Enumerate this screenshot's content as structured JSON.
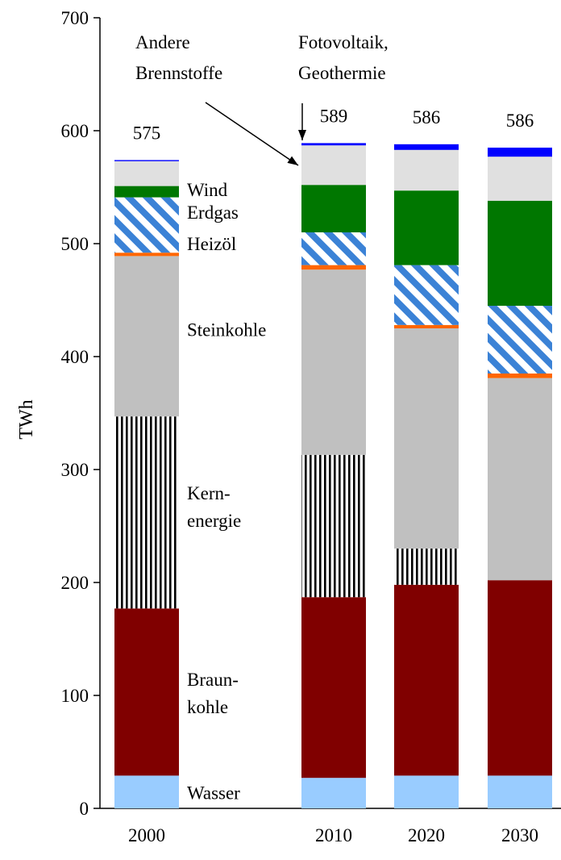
{
  "chart_data": {
    "type": "bar",
    "stacked": true,
    "title": "",
    "xlabel": "",
    "ylabel": "TWh",
    "ylim": [
      0,
      700
    ],
    "yticks": [
      "0",
      "100",
      "200",
      "300",
      "400",
      "500",
      "600",
      "700"
    ],
    "categories": [
      "2000",
      "2010",
      "2020",
      "2030"
    ],
    "totals": [
      "575",
      "589",
      "586",
      "586"
    ],
    "series": [
      {
        "key": "wasser",
        "values": [
          29,
          27,
          29,
          29
        ],
        "color": "#99ccff",
        "pattern": "solid"
      },
      {
        "key": "braunkohle",
        "values": [
          148,
          160,
          169,
          173
        ],
        "color": "#800000",
        "pattern": "solid"
      },
      {
        "key": "kernenergie",
        "values": [
          170,
          126,
          32,
          0
        ],
        "color": "#000000",
        "pattern": "vertical-stripes"
      },
      {
        "key": "steinkohle",
        "values": [
          142,
          164,
          195,
          179
        ],
        "color": "#c0c0c0",
        "pattern": "solid"
      },
      {
        "key": "heizoel",
        "values": [
          3,
          4,
          3,
          4
        ],
        "color": "#ff6600",
        "pattern": "solid"
      },
      {
        "key": "erdgas",
        "values": [
          49,
          29,
          53,
          60
        ],
        "color": "#3366cc",
        "pattern": "diagonal-stripes"
      },
      {
        "key": "wind",
        "values": [
          10,
          42,
          66,
          93
        ],
        "color": "#007700",
        "pattern": "solid"
      },
      {
        "key": "andere_brennstoffe",
        "values": [
          22,
          35,
          36,
          39
        ],
        "color": "#e0e0e0",
        "pattern": "solid"
      },
      {
        "key": "fotovoltaik_geothermie",
        "values": [
          1,
          2,
          5,
          8
        ],
        "color": "#0000ff",
        "pattern": "solid"
      }
    ],
    "segment_labels": [
      {
        "lines": [
          "Wind"
        ],
        "value": 548
      },
      {
        "lines": [
          "Erdgas"
        ],
        "value": 528
      },
      {
        "lines": [
          "Heizöl"
        ],
        "value": 500
      },
      {
        "lines": [
          "Steinkohle"
        ],
        "value": 424
      },
      {
        "lines": [
          "Kern-",
          "energie"
        ],
        "value": 267
      },
      {
        "lines": [
          "Braun-",
          "kohle"
        ],
        "value": 102
      },
      {
        "lines": [
          "Wasser"
        ],
        "value": 14
      }
    ],
    "annotations": [
      {
        "lines": [
          "Andere",
          "Brennstoffe"
        ],
        "points_to_category": "2010",
        "points_to_value": 567
      },
      {
        "lines": [
          "Fotovoltaik,",
          "Geothermie"
        ],
        "points_to_category": "2010",
        "points_to_value": 588
      }
    ]
  }
}
